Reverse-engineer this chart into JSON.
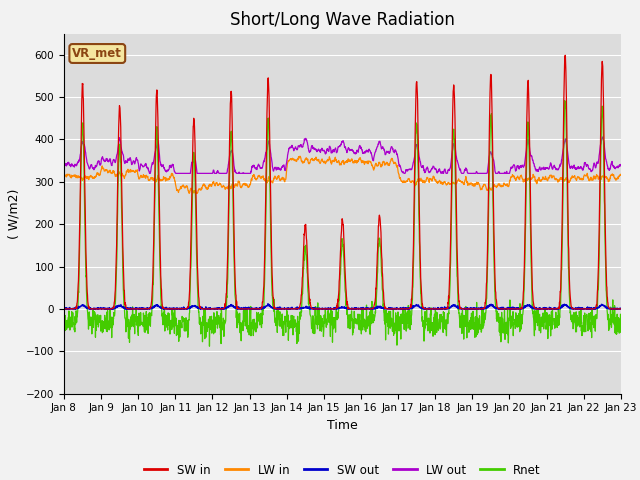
{
  "title": "Short/Long Wave Radiation",
  "xlabel": "Time",
  "ylabel": "( W/m2)",
  "ylim": [
    -200,
    650
  ],
  "yticks": [
    -200,
    -100,
    0,
    100,
    200,
    300,
    400,
    500,
    600
  ],
  "xlim_days": [
    0,
    15
  ],
  "x_tick_labels": [
    "Jan 8",
    "Jan 9",
    "Jan 10",
    "Jan 11",
    "Jan 12",
    "Jan 13",
    "Jan 14",
    "Jan 15",
    "Jan 16",
    "Jan 17",
    "Jan 18",
    "Jan 19",
    "Jan 20",
    "Jan 21",
    "Jan 22",
    "Jan 23"
  ],
  "annotation": "VR_met",
  "line_colors": {
    "SW_in": "#dd0000",
    "LW_in": "#ff8800",
    "SW_out": "#0000cc",
    "LW_out": "#aa00cc",
    "Rnet": "#44cc00"
  },
  "legend_labels": [
    "SW in",
    "LW in",
    "SW out",
    "LW out",
    "Rnet"
  ],
  "bg_color": "#dcdcdc",
  "title_fontsize": 12,
  "axis_fontsize": 9
}
